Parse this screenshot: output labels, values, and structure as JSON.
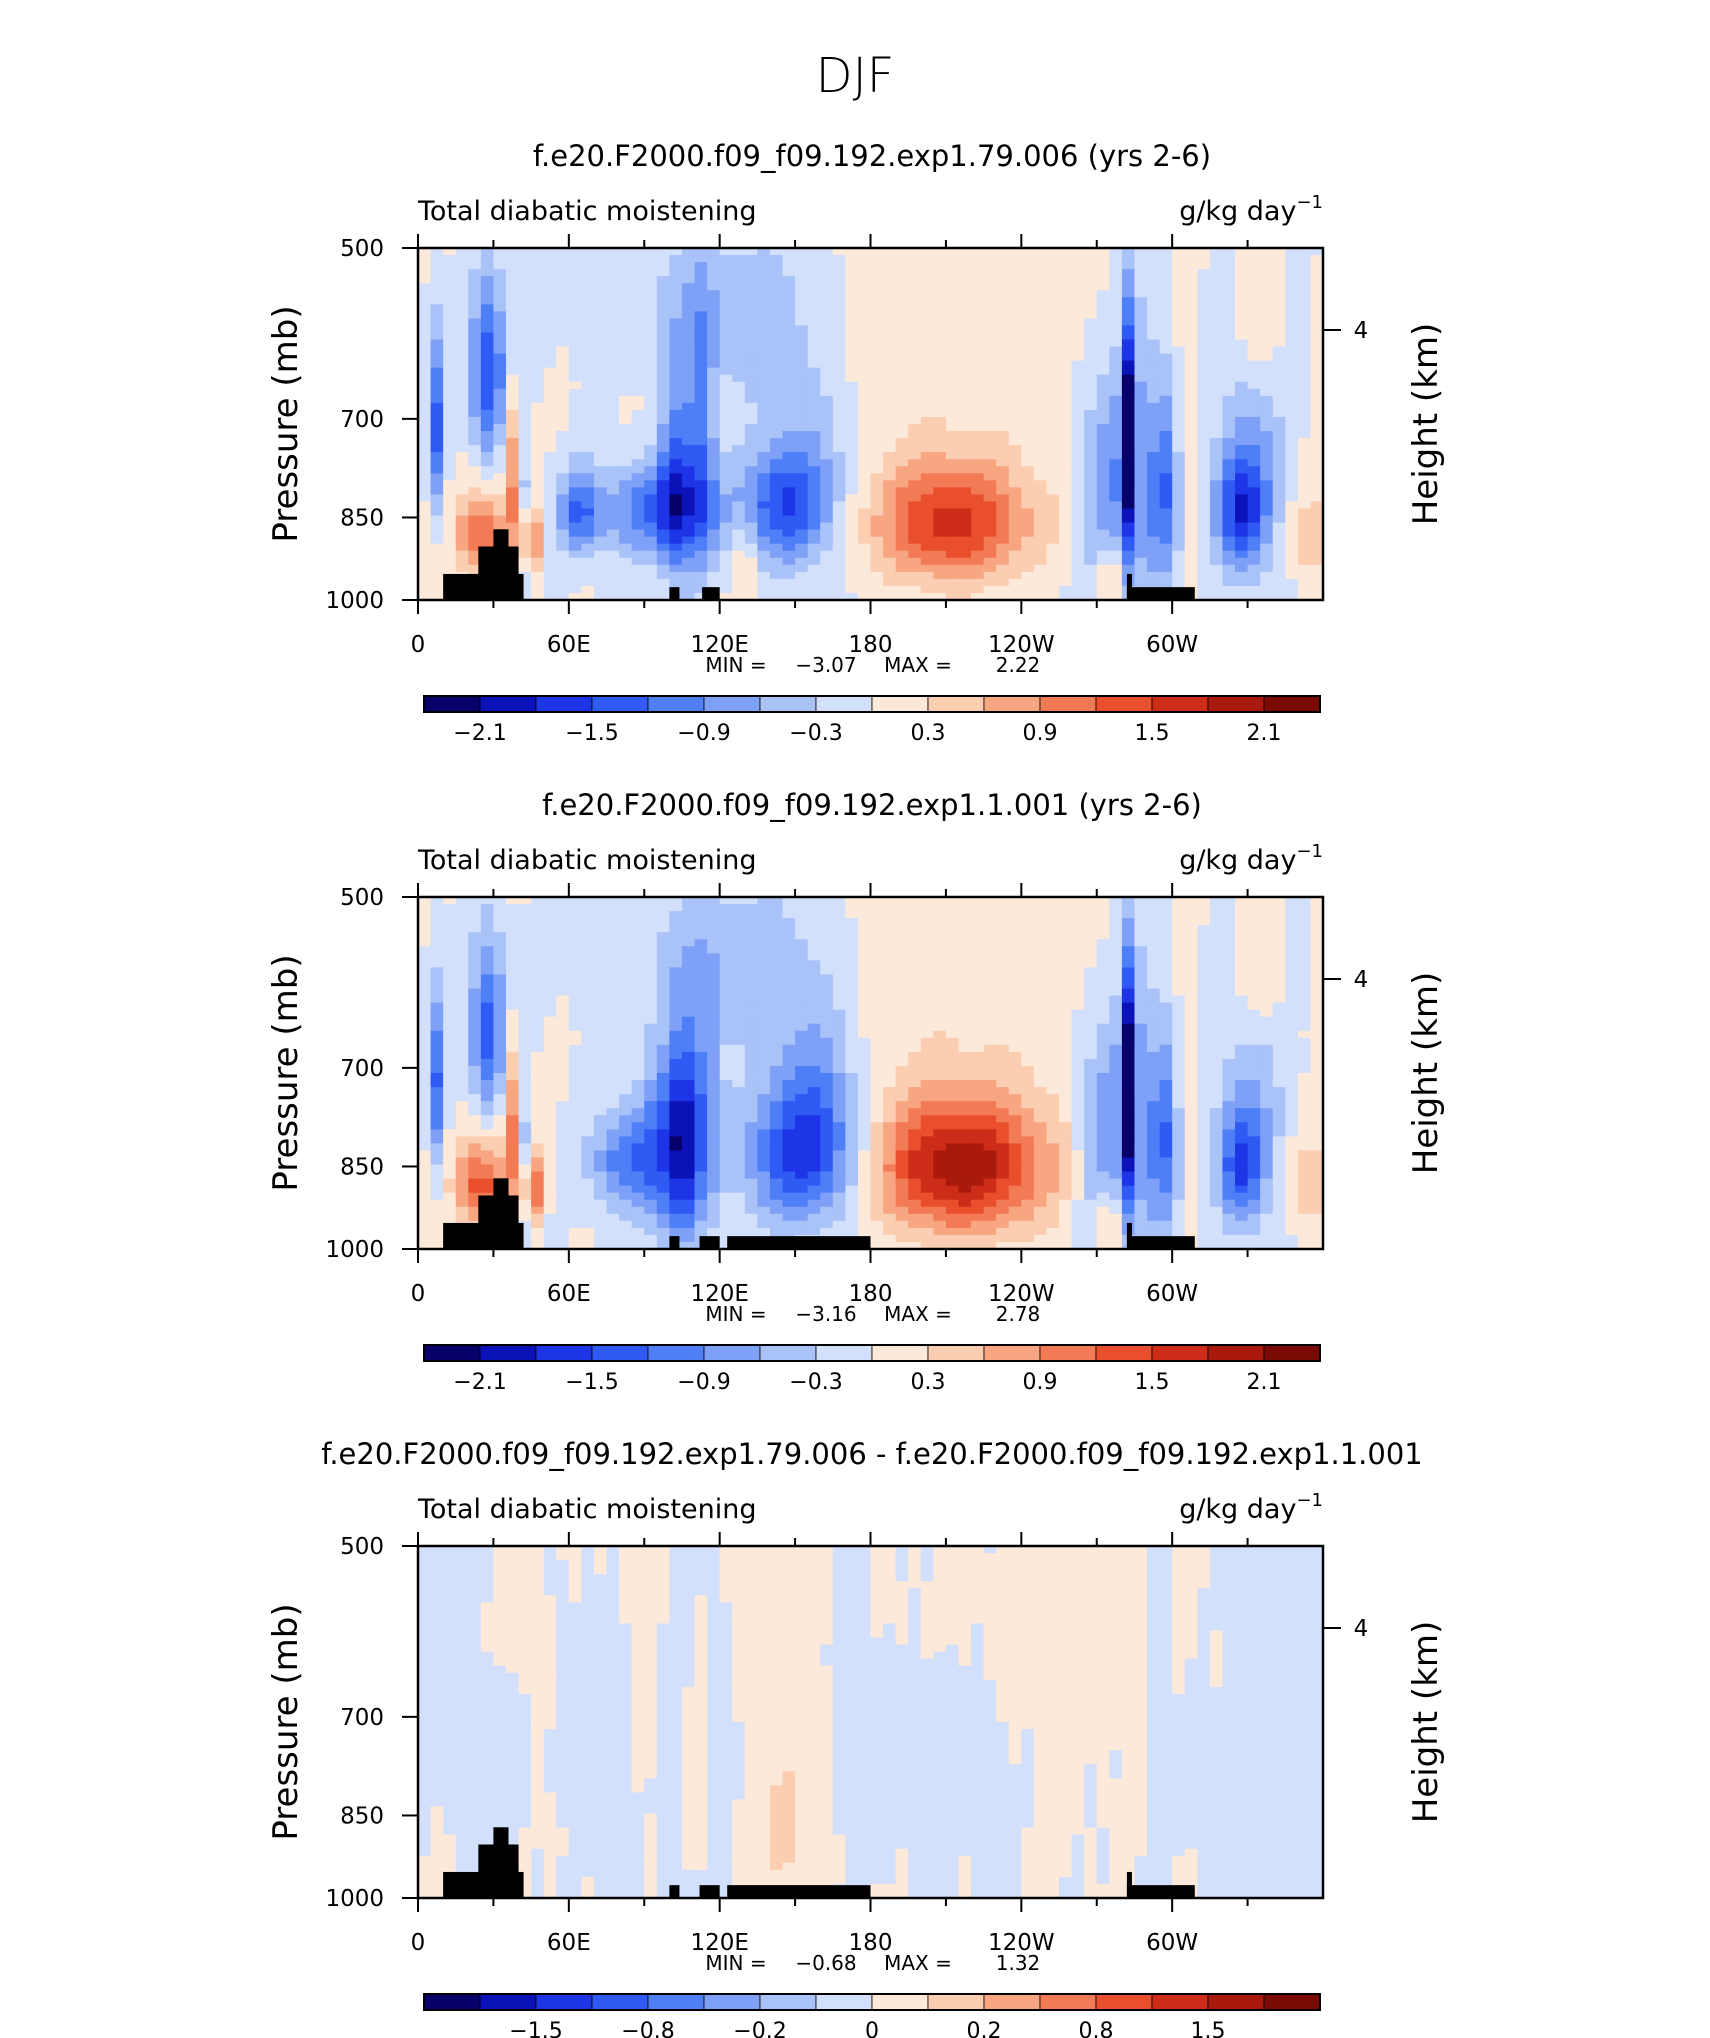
{
  "figure_title": "DJF",
  "colors": {
    "palette": [
      "#08006a",
      "#0b12b8",
      "#1d35e6",
      "#2f5bf4",
      "#4f7ff7",
      "#7ea1f7",
      "#a9c2f8",
      "#d3e0fb",
      "#fde9da",
      "#fbcdb1",
      "#f7a681",
      "#f27b55",
      "#e94f2d",
      "#cd2c18",
      "#a91a0c",
      "#7a0a04"
    ],
    "land": "#000000"
  },
  "chart_data": [
    {
      "type": "heatmap",
      "title": "f.e20.F2000.f09_f09.192.exp1.79.006 (yrs 2-6)",
      "left_title": "Total diabatic moistening",
      "units_base": "g/kg day",
      "units_exp": "−1",
      "ylabel": "Pressure (mb)",
      "ylabel_right": "Height (km)",
      "yticks": [
        "500",
        "700",
        "850",
        "1000"
      ],
      "ytick_values": [
        500,
        700,
        850,
        1000
      ],
      "yticks_right": [
        "4"
      ],
      "xticks": [
        "0",
        "60E",
        "120E",
        "180",
        "120W",
        "60W"
      ],
      "xtick_values": [
        0,
        60,
        120,
        180,
        240,
        300
      ],
      "xlim": [
        0,
        360
      ],
      "ylim": [
        1000,
        500
      ],
      "min_label": "MIN =",
      "min_value": "−3.07",
      "max_label": "MAX =",
      "max_value": "2.22",
      "levels": [
        "−2.1",
        "−1.5",
        "−0.9",
        "−0.3",
        "0.3",
        "0.9",
        "1.5",
        "2.1"
      ],
      "level_positions": [
        1,
        3,
        5,
        7,
        9,
        11,
        13,
        15
      ],
      "blobs": [
        {
          "x": 7,
          "p": 710,
          "sx": 2.5,
          "sy": 90,
          "a": -1.6
        },
        {
          "x": 28,
          "p": 640,
          "sx": 5,
          "sy": 80,
          "a": -1.9
        },
        {
          "x": 25,
          "p": 880,
          "sx": 7,
          "sy": 55,
          "a": 1.5
        },
        {
          "x": 38,
          "p": 780,
          "sx": 3,
          "sy": 90,
          "a": 1.2
        },
        {
          "x": 44,
          "p": 890,
          "sx": 3,
          "sy": 45,
          "a": 1.8
        },
        {
          "x": 42,
          "p": 860,
          "sx": 2,
          "sy": 90,
          "a": -1.3
        },
        {
          "x": 64,
          "p": 840,
          "sx": 6,
          "sy": 50,
          "a": -1.4
        },
        {
          "x": 95,
          "p": 840,
          "sx": 16,
          "sy": 55,
          "a": -1.5
        },
        {
          "x": 103,
          "p": 790,
          "sx": 5,
          "sy": 120,
          "a": -1.5
        },
        {
          "x": 113,
          "p": 740,
          "sx": 4,
          "sy": 140,
          "a": -1.2
        },
        {
          "x": 145,
          "p": 830,
          "sx": 13,
          "sy": 70,
          "a": -1.8
        },
        {
          "x": 160,
          "p": 760,
          "sx": 12,
          "sy": 110,
          "a": -0.5
        },
        {
          "x": 212,
          "p": 860,
          "sx": 22,
          "sy": 70,
          "a": 1.95
        },
        {
          "x": 200,
          "p": 620,
          "sx": 60,
          "sy": 180,
          "a": 0.22
        },
        {
          "x": 283,
          "p": 730,
          "sx": 2.2,
          "sy": 120,
          "a": -2.8
        },
        {
          "x": 273,
          "p": 800,
          "sx": 8,
          "sy": 120,
          "a": -1.0
        },
        {
          "x": 297,
          "p": 800,
          "sx": 5,
          "sy": 110,
          "a": -1.3
        },
        {
          "x": 305,
          "p": 760,
          "sx": 3,
          "sy": 110,
          "a": 0.6
        },
        {
          "x": 327,
          "p": 840,
          "sx": 7,
          "sy": 60,
          "a": -1.6
        },
        {
          "x": 331,
          "p": 780,
          "sx": 10,
          "sy": 130,
          "a": -0.9
        },
        {
          "x": 288,
          "p": 800,
          "sx": 9,
          "sy": 200,
          "a": -0.5
        },
        {
          "x": 110,
          "p": 560,
          "sx": 28,
          "sy": 60,
          "a": -0.45
        },
        {
          "x": 138,
          "p": 590,
          "sx": 16,
          "sy": 80,
          "a": -0.5
        },
        {
          "x": 335,
          "p": 580,
          "sx": 6,
          "sy": 55,
          "a": 0.55
        },
        {
          "x": 275,
          "p": 950,
          "sx": 3,
          "sy": 40,
          "a": 1.0
        },
        {
          "x": 355,
          "p": 880,
          "sx": 6,
          "sy": 60,
          "a": 0.7
        },
        {
          "x": 130,
          "p": 920,
          "sx": 3,
          "sy": 60,
          "a": 0.6
        }
      ],
      "land": [
        {
          "x0": 10,
          "x1": 42,
          "p": 950
        },
        {
          "x0": 24,
          "x1": 40,
          "p": 900
        },
        {
          "x0": 30,
          "x1": 36,
          "p": 870
        },
        {
          "x0": 100,
          "x1": 104,
          "p": 975
        },
        {
          "x0": 113,
          "x1": 120,
          "p": 975
        },
        {
          "x0": 282,
          "x1": 284,
          "p": 950
        },
        {
          "x0": 282,
          "x1": 309,
          "p": 975
        }
      ]
    },
    {
      "type": "heatmap",
      "title": "f.e20.F2000.f09_f09.192.exp1.1.001 (yrs 2-6)",
      "left_title": "Total diabatic moistening",
      "units_base": "g/kg day",
      "units_exp": "−1",
      "ylabel": "Pressure (mb)",
      "ylabel_right": "Height (km)",
      "yticks": [
        "500",
        "700",
        "850",
        "1000"
      ],
      "ytick_values": [
        500,
        700,
        850,
        1000
      ],
      "yticks_right": [
        "4"
      ],
      "xticks": [
        "0",
        "60E",
        "120E",
        "180",
        "120W",
        "60W"
      ],
      "xtick_values": [
        0,
        60,
        120,
        180,
        240,
        300
      ],
      "xlim": [
        0,
        360
      ],
      "ylim": [
        1000,
        500
      ],
      "min_label": "MIN =",
      "min_value": "−3.16",
      "max_label": "MAX =",
      "max_value": "2.78",
      "levels": [
        "−2.1",
        "−1.5",
        "−0.9",
        "−0.3",
        "0.3",
        "0.9",
        "1.5",
        "2.1"
      ],
      "level_positions": [
        1,
        3,
        5,
        7,
        9,
        11,
        13,
        15
      ],
      "blobs": [
        {
          "x": 7,
          "p": 720,
          "sx": 2.5,
          "sy": 90,
          "a": -1.5
        },
        {
          "x": 28,
          "p": 650,
          "sx": 5,
          "sy": 80,
          "a": -1.7
        },
        {
          "x": 25,
          "p": 880,
          "sx": 7,
          "sy": 55,
          "a": 1.7
        },
        {
          "x": 38,
          "p": 780,
          "sx": 3,
          "sy": 90,
          "a": 1.3
        },
        {
          "x": 45,
          "p": 890,
          "sx": 3,
          "sy": 45,
          "a": 2.0
        },
        {
          "x": 42,
          "p": 860,
          "sx": 2,
          "sy": 90,
          "a": -1.4
        },
        {
          "x": 82,
          "p": 840,
          "sx": 10,
          "sy": 60,
          "a": -1.3
        },
        {
          "x": 100,
          "p": 820,
          "sx": 8,
          "sy": 110,
          "a": -1.6
        },
        {
          "x": 106,
          "p": 800,
          "sx": 4,
          "sy": 120,
          "a": -1.5
        },
        {
          "x": 115,
          "p": 760,
          "sx": 4,
          "sy": 120,
          "a": -1.0
        },
        {
          "x": 152,
          "p": 830,
          "sx": 16,
          "sy": 85,
          "a": -1.9
        },
        {
          "x": 160,
          "p": 730,
          "sx": 12,
          "sy": 110,
          "a": -0.7
        },
        {
          "x": 216,
          "p": 850,
          "sx": 24,
          "sy": 80,
          "a": 2.45
        },
        {
          "x": 200,
          "p": 620,
          "sx": 60,
          "sy": 180,
          "a": 0.22
        },
        {
          "x": 283,
          "p": 730,
          "sx": 2.2,
          "sy": 120,
          "a": -2.9
        },
        {
          "x": 273,
          "p": 800,
          "sx": 8,
          "sy": 120,
          "a": -1.0
        },
        {
          "x": 297,
          "p": 800,
          "sx": 5,
          "sy": 110,
          "a": -1.3
        },
        {
          "x": 305,
          "p": 760,
          "sx": 3,
          "sy": 110,
          "a": 0.6
        },
        {
          "x": 327,
          "p": 850,
          "sx": 6,
          "sy": 60,
          "a": -1.4
        },
        {
          "x": 331,
          "p": 780,
          "sx": 10,
          "sy": 130,
          "a": -0.8
        },
        {
          "x": 288,
          "p": 800,
          "sx": 9,
          "sy": 200,
          "a": -0.5
        },
        {
          "x": 110,
          "p": 560,
          "sx": 28,
          "sy": 60,
          "a": -0.45
        },
        {
          "x": 138,
          "p": 590,
          "sx": 16,
          "sy": 80,
          "a": -0.5
        },
        {
          "x": 335,
          "p": 580,
          "sx": 6,
          "sy": 55,
          "a": 0.55
        },
        {
          "x": 275,
          "p": 950,
          "sx": 3,
          "sy": 40,
          "a": 1.0
        },
        {
          "x": 355,
          "p": 880,
          "sx": 6,
          "sy": 60,
          "a": 0.7
        }
      ],
      "land": [
        {
          "x0": 10,
          "x1": 42,
          "p": 950
        },
        {
          "x0": 24,
          "x1": 40,
          "p": 900
        },
        {
          "x0": 30,
          "x1": 36,
          "p": 870
        },
        {
          "x0": 100,
          "x1": 104,
          "p": 975
        },
        {
          "x0": 112,
          "x1": 120,
          "p": 975
        },
        {
          "x0": 123,
          "x1": 180,
          "p": 975
        },
        {
          "x0": 282,
          "x1": 284,
          "p": 950
        },
        {
          "x0": 282,
          "x1": 309,
          "p": 975
        }
      ]
    },
    {
      "type": "heatmap",
      "title": "f.e20.F2000.f09_f09.192.exp1.79.006 - f.e20.F2000.f09_f09.192.exp1.1.001",
      "left_title": "Total diabatic moistening",
      "units_base": "g/kg day",
      "units_exp": "−1",
      "ylabel": "Pressure (mb)",
      "ylabel_right": "Height (km)",
      "yticks": [
        "500",
        "700",
        "850",
        "1000"
      ],
      "ytick_values": [
        500,
        700,
        850,
        1000
      ],
      "yticks_right": [
        "4"
      ],
      "xticks": [
        "0",
        "60E",
        "120E",
        "180",
        "120W",
        "60W"
      ],
      "xtick_values": [
        0,
        60,
        120,
        180,
        240,
        300
      ],
      "xlim": [
        0,
        360
      ],
      "ylim": [
        1000,
        500
      ],
      "min_label": "MIN =",
      "min_value": "−0.68",
      "max_label": "MAX =",
      "max_value": "1.32",
      "levels": [
        "−1.5",
        "−0.8",
        "−0.2",
        "0",
        "0.2",
        "0.8",
        "1.5"
      ],
      "level_positions": [
        2,
        4,
        6,
        8,
        10,
        12,
        14
      ],
      "blobs": [
        {
          "x": 15,
          "p": 730,
          "sx": 18,
          "sy": 120,
          "a": -0.45
        },
        {
          "x": 70,
          "p": 780,
          "sx": 14,
          "sy": 110,
          "a": -0.4
        },
        {
          "x": 35,
          "p": 600,
          "sx": 6,
          "sy": 60,
          "a": 0.25
        },
        {
          "x": 48,
          "p": 720,
          "sx": 4,
          "sy": 120,
          "a": 0.3
        },
        {
          "x": 90,
          "p": 680,
          "sx": 5,
          "sy": 160,
          "a": 0.3
        },
        {
          "x": 103,
          "p": 760,
          "sx": 3,
          "sy": 140,
          "a": -0.45
        },
        {
          "x": 118,
          "p": 760,
          "sx": 3,
          "sy": 150,
          "a": -0.35
        },
        {
          "x": 110,
          "p": 780,
          "sx": 3,
          "sy": 140,
          "a": 0.3
        },
        {
          "x": 145,
          "p": 880,
          "sx": 6,
          "sy": 80,
          "a": 1.0
        },
        {
          "x": 150,
          "p": 740,
          "sx": 12,
          "sy": 170,
          "a": 0.3
        },
        {
          "x": 172,
          "p": 700,
          "sx": 6,
          "sy": 180,
          "a": -0.25
        },
        {
          "x": 210,
          "p": 780,
          "sx": 16,
          "sy": 90,
          "a": -0.5
        },
        {
          "x": 250,
          "p": 700,
          "sx": 25,
          "sy": 150,
          "a": 0.1
        },
        {
          "x": 285,
          "p": 730,
          "sx": 3,
          "sy": 150,
          "a": 0.5
        },
        {
          "x": 292,
          "p": 740,
          "sx": 5,
          "sy": 180,
          "a": -0.3
        },
        {
          "x": 327,
          "p": 830,
          "sx": 10,
          "sy": 80,
          "a": -0.5
        },
        {
          "x": 345,
          "p": 680,
          "sx": 12,
          "sy": 150,
          "a": -0.25
        },
        {
          "x": 240,
          "p": 560,
          "sx": 40,
          "sy": 50,
          "a": 0.08
        },
        {
          "x": 55,
          "p": 880,
          "sx": 4,
          "sy": 60,
          "a": 0.3
        },
        {
          "x": 8,
          "p": 880,
          "sx": 3,
          "sy": 50,
          "a": 0.5
        }
      ],
      "land": [
        {
          "x0": 10,
          "x1": 42,
          "p": 950
        },
        {
          "x0": 24,
          "x1": 40,
          "p": 900
        },
        {
          "x0": 30,
          "x1": 36,
          "p": 870
        },
        {
          "x0": 100,
          "x1": 104,
          "p": 975
        },
        {
          "x0": 112,
          "x1": 120,
          "p": 975
        },
        {
          "x0": 123,
          "x1": 180,
          "p": 975
        },
        {
          "x0": 282,
          "x1": 284,
          "p": 950
        },
        {
          "x0": 282,
          "x1": 309,
          "p": 975
        }
      ]
    }
  ]
}
